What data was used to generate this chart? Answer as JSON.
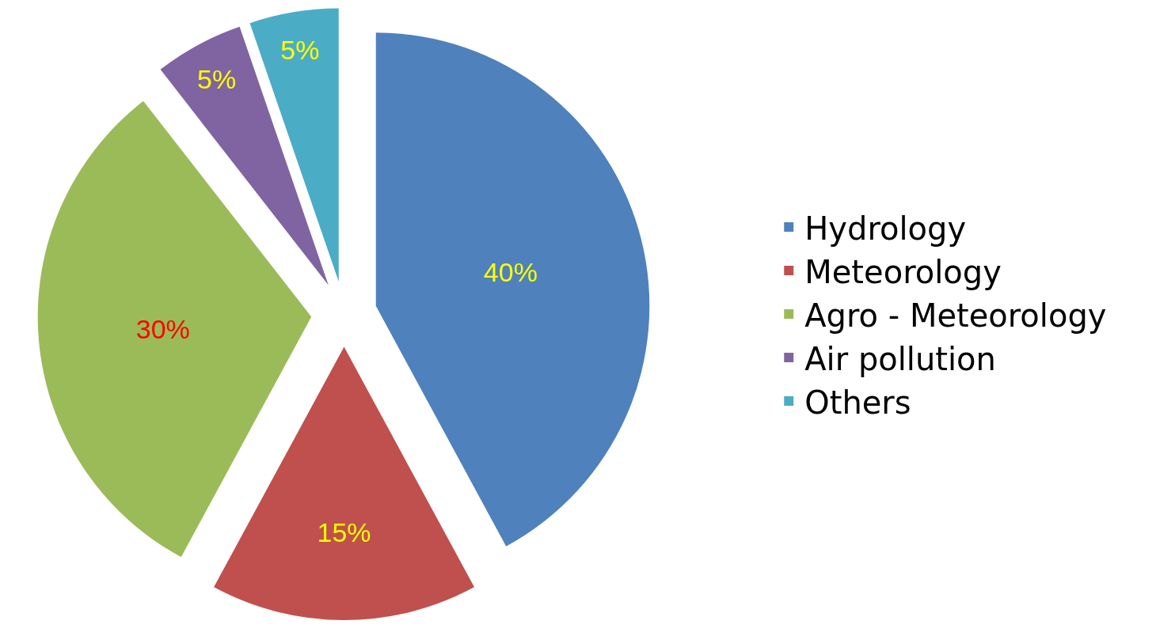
{
  "chart_data": {
    "type": "pie",
    "categories": [
      "Hydrology",
      "Meteorology",
      "Agro - Meteorology",
      "Air pollution",
      "Others"
    ],
    "values": [
      40,
      15,
      30,
      5,
      5
    ],
    "colors": [
      "#4f81bd",
      "#c0504d",
      "#9bbb59",
      "#8064a2",
      "#4bacc6"
    ],
    "value_labels": [
      "40%",
      "15%",
      "30%",
      "5%",
      "5%"
    ],
    "legend": "right"
  }
}
